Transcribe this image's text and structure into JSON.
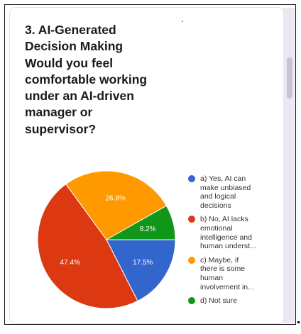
{
  "question": {
    "title": "3. AI-Generated\nDecision Making\nWould you feel\ncomfortable working\nunder an AI-driven\nmanager or\nsupervisor?"
  },
  "chart_data": {
    "type": "pie",
    "title": "3. AI-Generated Decision Making Would you feel comfortable working under an AI-driven manager or supervisor?",
    "categories": [
      "a) Yes, AI can make unbiased and logical decisions",
      "b) No, AI lacks emotional intelligence and human underst...",
      "c) Maybe, if there is some human involvement in...",
      "d) Not sure"
    ],
    "values": [
      17.5,
      47.4,
      26.8,
      8.2
    ],
    "value_labels": [
      "17.5%",
      "47.4%",
      "26.8%",
      "8.2%"
    ],
    "colors": [
      "#3366cc",
      "#dc3912",
      "#ff9900",
      "#109618"
    ],
    "legend_position": "right"
  },
  "legend": {
    "items": [
      {
        "label": "a) Yes, AI can\nmake unbiased\nand logical\ndecisions",
        "color": "#3366cc"
      },
      {
        "label": "b) No, AI lacks\nemotional\nintelligence and\nhuman underst...",
        "color": "#dc3912"
      },
      {
        "label": "c) Maybe, if\nthere is some\nhuman\ninvolvement in...",
        "color": "#ff9900"
      },
      {
        "label": "d) Not sure",
        "color": "#109618"
      }
    ]
  }
}
